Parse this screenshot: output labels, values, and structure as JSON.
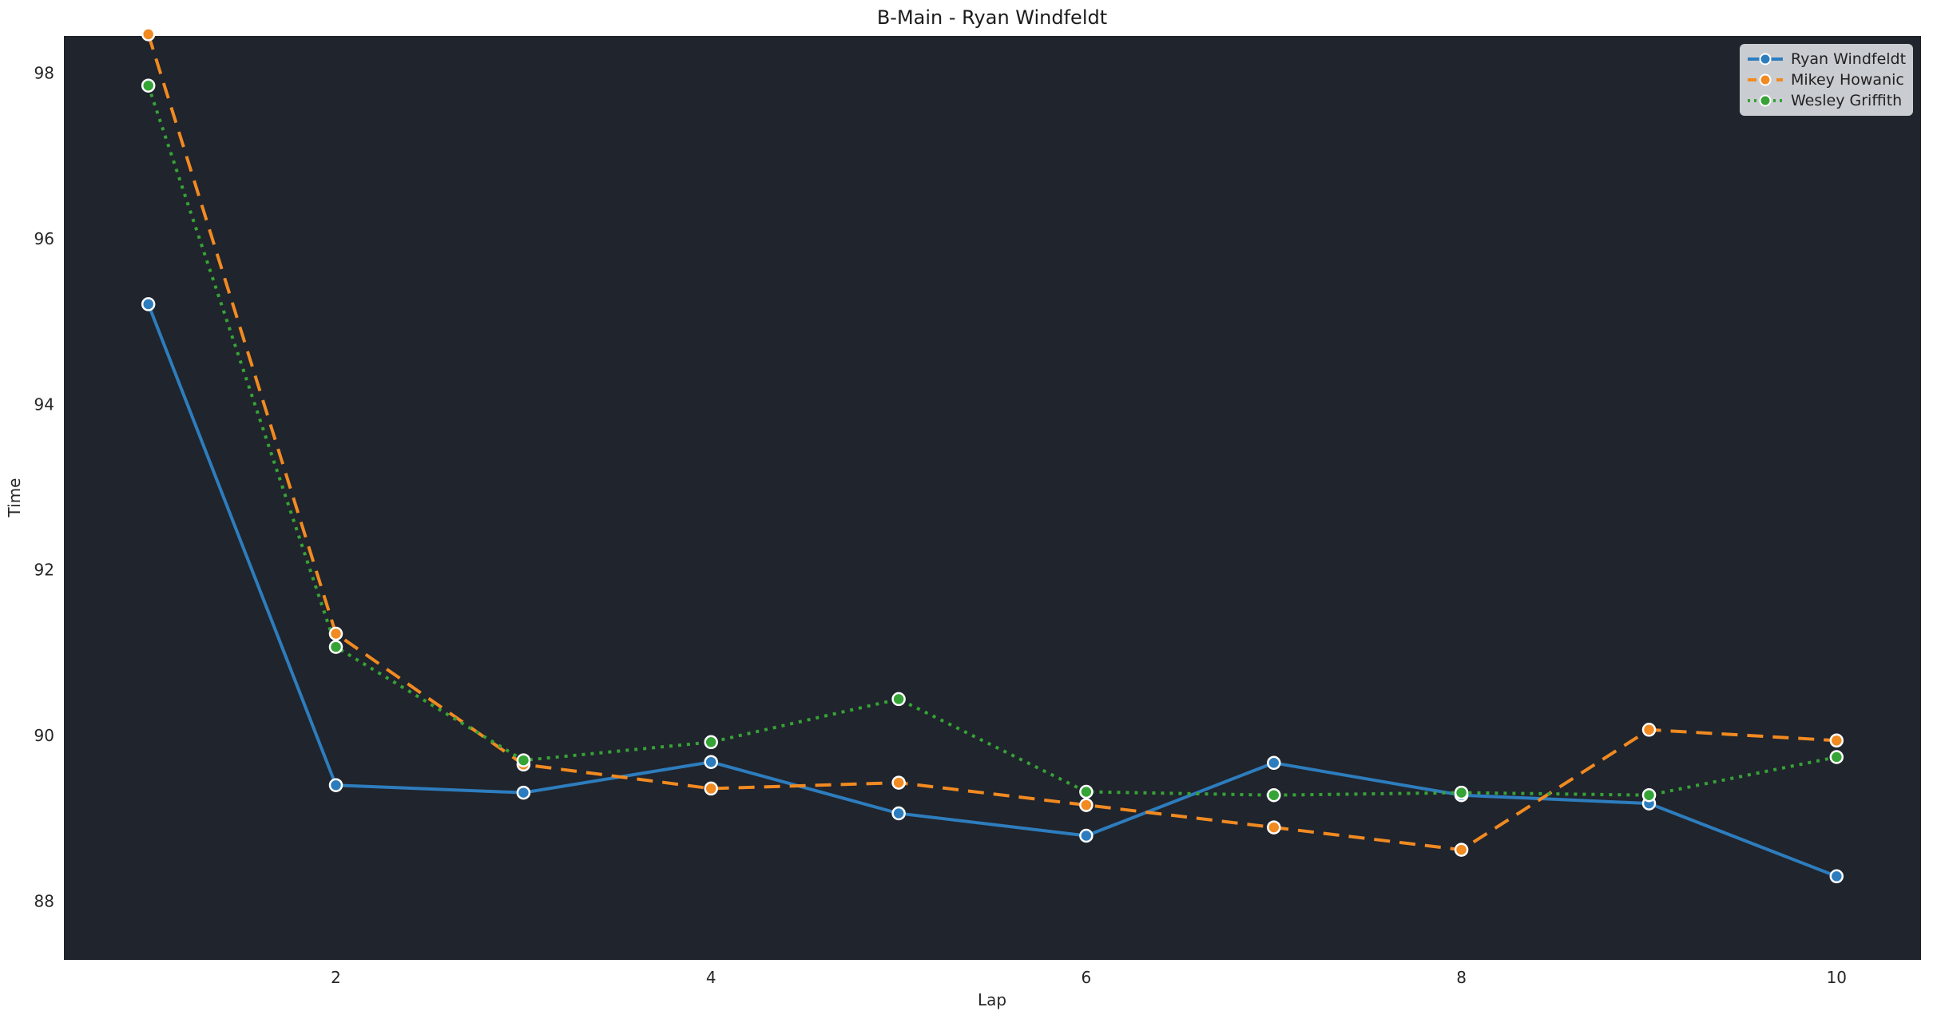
{
  "chart_data": {
    "type": "line",
    "title": "B-Main - Ryan Windfeldt",
    "xlabel": "Lap",
    "ylabel": "Time",
    "x": [
      1,
      2,
      3,
      4,
      5,
      6,
      7,
      8,
      9,
      10
    ],
    "xticks": [
      2,
      4,
      6,
      8,
      10
    ],
    "yticks": [
      88,
      90,
      92,
      94,
      96,
      98
    ],
    "xlim": [
      0.55,
      10.45
    ],
    "ylim": [
      87.29,
      98.45
    ],
    "grid": false,
    "axes_background": "#20242c",
    "figure_background": "#ffffff",
    "text_color": "#262626",
    "legend_position": "upper right",
    "series": [
      {
        "name": "Ryan Windfeldt",
        "color": "#2d7dbe",
        "line_style": "solid",
        "marker": "circle",
        "marker_edge_color": "#ffffff",
        "values": [
          95.21,
          89.4,
          89.31,
          89.68,
          89.06,
          88.79,
          89.67,
          89.28,
          89.18,
          88.3
        ]
      },
      {
        "name": "Mikey Howanic",
        "color": "#f18a21",
        "line_style": "dashed",
        "marker": "circle",
        "marker_edge_color": "#ffffff",
        "values": [
          98.47,
          91.23,
          89.65,
          89.36,
          89.43,
          89.16,
          88.89,
          88.62,
          90.07,
          89.94
        ]
      },
      {
        "name": "Wesley Griffith",
        "color": "#36a336",
        "line_style": "dotted",
        "marker": "circle",
        "marker_edge_color": "#ffffff",
        "values": [
          97.85,
          91.07,
          89.7,
          89.92,
          90.44,
          89.32,
          89.28,
          89.31,
          89.28,
          89.74
        ]
      }
    ]
  }
}
